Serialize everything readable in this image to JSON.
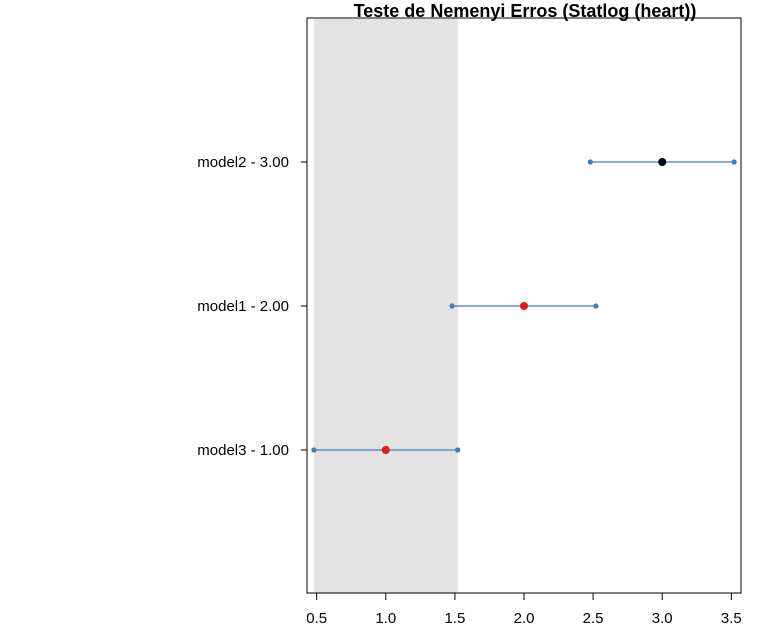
{
  "chart_data": {
    "type": "dot-interval",
    "title": "Teste de Nemenyi Erros (Statlog (heart))",
    "xlabel": "",
    "ylabel": "",
    "xlim": [
      0.43,
      3.57
    ],
    "xticks": [
      "0.5",
      "1.0",
      "1.5",
      "2.0",
      "2.5",
      "3.0",
      "3.5"
    ],
    "xtick_values": [
      0.5,
      1.0,
      1.5,
      2.0,
      2.5,
      3.0,
      3.5
    ],
    "critical_band": [
      0.48,
      1.52
    ],
    "grid": false,
    "rows": [
      {
        "label": "model2 - 3.00",
        "value": 3.0,
        "lower": 2.48,
        "upper": 3.52,
        "point_color": "#000000"
      },
      {
        "label": "model1 - 2.00",
        "value": 2.0,
        "lower": 1.48,
        "upper": 2.52,
        "point_color": "#e41a1c"
      },
      {
        "label": "model3 - 1.00",
        "value": 1.0,
        "lower": 0.48,
        "upper": 1.52,
        "point_color": "#e41a1c"
      }
    ],
    "colors": {
      "interval": "#3a7fbf",
      "band": "#e3e3e3",
      "axis": "#000000"
    }
  }
}
